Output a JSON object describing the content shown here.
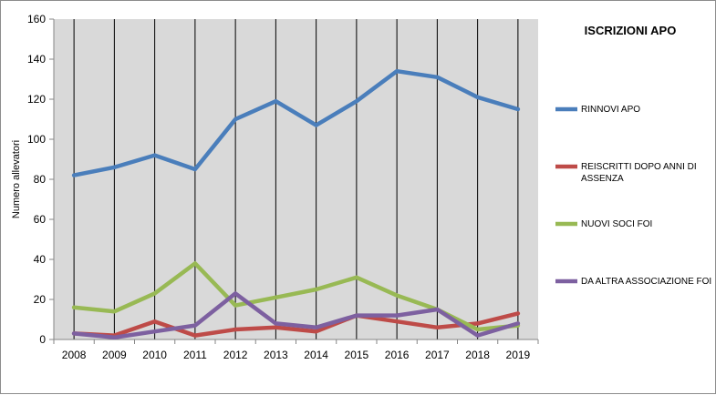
{
  "chart_data": {
    "type": "line",
    "title": "ISCRIZIONI APO",
    "xlabel": "",
    "ylabel": "Numero allevatori",
    "ylim": [
      0,
      160
    ],
    "yticks": [
      0,
      20,
      40,
      60,
      80,
      100,
      120,
      140,
      160
    ],
    "grid": "vertical",
    "legend_position": "right",
    "categories": [
      "2008",
      "2009",
      "2010",
      "2011",
      "2012",
      "2013",
      "2014",
      "2015",
      "2016",
      "2017",
      "2018",
      "2019"
    ],
    "series": [
      {
        "name": "RINNOVI APO",
        "color": "#4a7ebb",
        "values": [
          82,
          86,
          92,
          85,
          110,
          119,
          107,
          119,
          134,
          131,
          121,
          115
        ]
      },
      {
        "name": "REISCRITTI DOPO ANNI  DI ASSENZA",
        "name_lines": [
          "REISCRITTI DOPO ANNI  DI",
          "ASSENZA"
        ],
        "color": "#be4b48",
        "values": [
          3,
          2,
          9,
          2,
          5,
          6,
          4,
          12,
          9,
          6,
          8,
          13
        ]
      },
      {
        "name": "NUOVI SOCI FOI",
        "color": "#98b954",
        "values": [
          16,
          14,
          23,
          38,
          17,
          21,
          25,
          31,
          22,
          15,
          5,
          7
        ]
      },
      {
        "name": "DA ALTRA ASSOCIAZIONE  FOI",
        "color": "#7d60a0",
        "values": [
          3,
          1,
          4,
          7,
          23,
          8,
          6,
          12,
          12,
          15,
          2,
          8
        ]
      }
    ]
  }
}
